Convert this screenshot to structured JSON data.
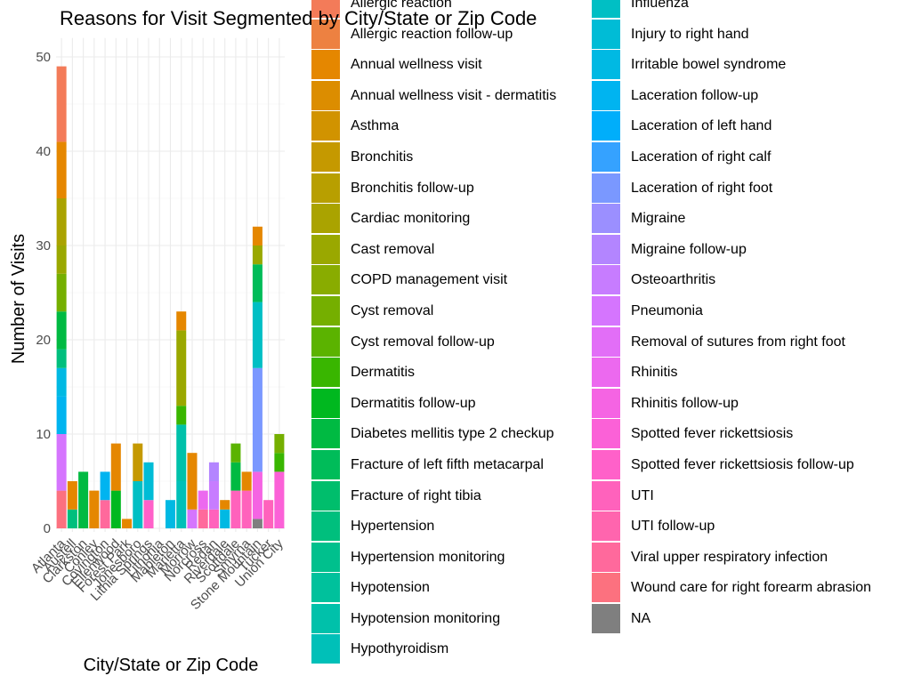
{
  "chart_data": {
    "type": "bar",
    "stacked": true,
    "title": "Reasons for Visit Segmented by City/State or Zip Code",
    "xlabel": "City/State or Zip Code",
    "ylabel": "Number of Visits",
    "ylim": [
      0,
      52
    ],
    "yticks": [
      0,
      10,
      20,
      30,
      40,
      50
    ],
    "grid": true,
    "legend_position": "right",
    "categories": [
      "Atlanta",
      "Austell",
      "Clarkston",
      "Conley",
      "Covington",
      "Ellenwood",
      "Forest Park",
      "Jonesboro",
      "Lithia Springs",
      "Lithonia",
      "Mableton",
      "Marietta",
      "Morrow",
      "Norcross",
      "Redan",
      "Riverdale",
      "Scottdale",
      "Smyrna",
      "Stone Mountain",
      "Tucker",
      "Union City"
    ],
    "series": [
      {
        "name": "Allergic reaction",
        "color": "#F37B59",
        "values": [
          8,
          0,
          0,
          0,
          0,
          0,
          0,
          0,
          0,
          0,
          0,
          0,
          0,
          0,
          0,
          0,
          0,
          0,
          0,
          0,
          0
        ]
      },
      {
        "name": "Allergic reaction follow-up",
        "color": "#ED8141",
        "values": [
          0,
          0,
          0,
          0,
          0,
          0,
          0,
          0,
          0,
          0,
          0,
          0,
          0,
          0,
          0,
          0,
          0,
          0,
          0,
          0,
          0
        ]
      },
      {
        "name": "Annual wellness visit",
        "color": "#E58700",
        "values": [
          6,
          3,
          0,
          4,
          0,
          5,
          1,
          0,
          0,
          0,
          0,
          2,
          6,
          0,
          0,
          1,
          0,
          2,
          2,
          0,
          0
        ]
      },
      {
        "name": "Annual wellness visit - dermatitis",
        "color": "#DC8D00",
        "values": [
          0,
          0,
          0,
          0,
          0,
          0,
          0,
          0,
          0,
          0,
          0,
          0,
          0,
          0,
          0,
          0,
          0,
          0,
          0,
          0,
          0
        ]
      },
      {
        "name": "Asthma",
        "color": "#D19300",
        "values": [
          0,
          0,
          0,
          0,
          0,
          0,
          0,
          0,
          0,
          0,
          0,
          0,
          0,
          0,
          0,
          0,
          0,
          0,
          0,
          0,
          0
        ]
      },
      {
        "name": "Bronchitis",
        "color": "#C59900",
        "values": [
          0,
          0,
          0,
          0,
          0,
          0,
          0,
          4,
          0,
          0,
          0,
          0,
          0,
          0,
          0,
          0,
          0,
          0,
          0,
          0,
          0
        ]
      },
      {
        "name": "Bronchitis follow-up",
        "color": "#B89F00",
        "values": [
          0,
          0,
          0,
          0,
          0,
          0,
          0,
          0,
          0,
          0,
          0,
          0,
          0,
          0,
          0,
          0,
          0,
          0,
          0,
          0,
          0
        ]
      },
      {
        "name": "Cardiac monitoring",
        "color": "#AAA300",
        "values": [
          5,
          0,
          0,
          0,
          0,
          0,
          0,
          0,
          0,
          0,
          0,
          0,
          0,
          0,
          0,
          0,
          0,
          0,
          0,
          0,
          0
        ]
      },
      {
        "name": "Cast removal",
        "color": "#9AA800",
        "values": [
          3,
          0,
          0,
          0,
          0,
          0,
          0,
          0,
          0,
          0,
          0,
          8,
          0,
          0,
          0,
          0,
          0,
          0,
          2,
          0,
          0
        ]
      },
      {
        "name": "COPD management visit",
        "color": "#89AC00",
        "values": [
          0,
          0,
          0,
          0,
          0,
          0,
          0,
          0,
          0,
          0,
          0,
          0,
          0,
          0,
          0,
          0,
          0,
          0,
          0,
          0,
          0
        ]
      },
      {
        "name": "Cyst removal",
        "color": "#75AF00",
        "values": [
          4,
          0,
          0,
          0,
          0,
          0,
          0,
          0,
          0,
          0,
          0,
          0,
          0,
          0,
          0,
          0,
          0,
          0,
          0,
          0,
          2
        ]
      },
      {
        "name": "Cyst removal follow-up",
        "color": "#5BB300",
        "values": [
          0,
          0,
          0,
          0,
          0,
          0,
          0,
          0,
          0,
          0,
          0,
          0,
          0,
          0,
          0,
          0,
          2,
          0,
          0,
          0,
          0
        ]
      },
      {
        "name": "Dermatitis",
        "color": "#39B600",
        "values": [
          0,
          0,
          0,
          0,
          0,
          0,
          0,
          0,
          0,
          0,
          0,
          2,
          0,
          0,
          0,
          0,
          0,
          0,
          0,
          0,
          2
        ]
      },
      {
        "name": "Dermatitis follow-up",
        "color": "#00B81F",
        "values": [
          0,
          0,
          0,
          0,
          0,
          4,
          0,
          0,
          0,
          0,
          0,
          0,
          0,
          0,
          0,
          0,
          0,
          0,
          0,
          0,
          0
        ]
      },
      {
        "name": "Diabetes mellitis type 2 checkup",
        "color": "#00BA42",
        "values": [
          4,
          0,
          6,
          0,
          0,
          0,
          0,
          0,
          0,
          0,
          0,
          0,
          0,
          0,
          0,
          0,
          3,
          0,
          0,
          0,
          0
        ]
      },
      {
        "name": "Fracture of left fifth metacarpal",
        "color": "#00BC59",
        "values": [
          0,
          0,
          0,
          0,
          0,
          0,
          0,
          0,
          0,
          0,
          0,
          0,
          0,
          0,
          0,
          0,
          0,
          0,
          4,
          0,
          0
        ]
      },
      {
        "name": "Fracture of right tibia",
        "color": "#00BE6C",
        "values": [
          0,
          0,
          0,
          0,
          0,
          0,
          0,
          0,
          0,
          0,
          0,
          0,
          0,
          0,
          0,
          0,
          0,
          0,
          0,
          0,
          0
        ]
      },
      {
        "name": "Hypertension",
        "color": "#00BF7D",
        "values": [
          2,
          2,
          0,
          0,
          0,
          0,
          0,
          0,
          0,
          0,
          0,
          0,
          0,
          0,
          0,
          0,
          0,
          0,
          0,
          0,
          0
        ]
      },
      {
        "name": "Hypertension monitoring",
        "color": "#00C08D",
        "values": [
          0,
          0,
          0,
          0,
          0,
          0,
          0,
          0,
          0,
          0,
          0,
          0,
          0,
          0,
          0,
          0,
          0,
          0,
          0,
          0,
          0
        ]
      },
      {
        "name": "Hypotension",
        "color": "#00C19C",
        "values": [
          0,
          0,
          0,
          0,
          0,
          0,
          0,
          0,
          0,
          0,
          0,
          0,
          0,
          0,
          0,
          0,
          0,
          0,
          0,
          0,
          0
        ]
      },
      {
        "name": "Hypotension monitoring",
        "color": "#00C1AA",
        "values": [
          0,
          0,
          0,
          0,
          0,
          0,
          0,
          0,
          0,
          0,
          0,
          6,
          0,
          0,
          0,
          0,
          0,
          0,
          0,
          0,
          0
        ]
      },
      {
        "name": "Hypothyroidism",
        "color": "#00C0B8",
        "values": [
          0,
          0,
          0,
          0,
          0,
          0,
          0,
          0,
          0,
          0,
          0,
          5,
          0,
          0,
          0,
          0,
          0,
          0,
          0,
          0,
          0
        ]
      },
      {
        "name": "Influenza",
        "color": "#00BFC4",
        "values": [
          0,
          0,
          0,
          0,
          0,
          0,
          0,
          5,
          0,
          0,
          0,
          0,
          0,
          0,
          0,
          0,
          0,
          0,
          7,
          0,
          0
        ]
      },
      {
        "name": "Injury to right hand",
        "color": "#00BCD6",
        "values": [
          0,
          0,
          0,
          0,
          0,
          0,
          0,
          0,
          4,
          0,
          0,
          0,
          0,
          0,
          0,
          0,
          0,
          0,
          0,
          0,
          0
        ]
      },
      {
        "name": "Irritable bowel syndrome",
        "color": "#00B9E3",
        "values": [
          3,
          0,
          0,
          0,
          0,
          0,
          0,
          0,
          0,
          0,
          3,
          0,
          0,
          0,
          0,
          2,
          0,
          0,
          0,
          0,
          0
        ]
      },
      {
        "name": "Laceration follow-up",
        "color": "#00B4F0",
        "values": [
          4,
          0,
          0,
          0,
          3,
          0,
          0,
          0,
          0,
          0,
          0,
          0,
          0,
          0,
          0,
          0,
          0,
          0,
          0,
          0,
          0
        ]
      },
      {
        "name": "Laceration of left hand",
        "color": "#00AEFA",
        "values": [
          0,
          0,
          0,
          0,
          0,
          0,
          0,
          0,
          0,
          0,
          0,
          0,
          0,
          0,
          0,
          0,
          0,
          0,
          0,
          0,
          0
        ]
      },
      {
        "name": "Laceration of right calf",
        "color": "#35A2FF",
        "values": [
          0,
          0,
          0,
          0,
          0,
          0,
          0,
          0,
          0,
          0,
          0,
          0,
          0,
          0,
          0,
          0,
          0,
          0,
          0,
          0,
          0
        ]
      },
      {
        "name": "Laceration of right foot",
        "color": "#7A98FF",
        "values": [
          0,
          0,
          0,
          0,
          0,
          0,
          0,
          0,
          0,
          0,
          0,
          0,
          0,
          0,
          0,
          0,
          0,
          0,
          11,
          0,
          0
        ]
      },
      {
        "name": "Migraine",
        "color": "#9B8FFF",
        "values": [
          0,
          0,
          0,
          0,
          0,
          0,
          0,
          0,
          0,
          0,
          0,
          0,
          0,
          0,
          0,
          0,
          0,
          0,
          0,
          0,
          0
        ]
      },
      {
        "name": "Migraine follow-up",
        "color": "#B385FF",
        "values": [
          0,
          0,
          0,
          0,
          0,
          0,
          0,
          0,
          0,
          0,
          0,
          0,
          0,
          0,
          2,
          0,
          0,
          0,
          0,
          0,
          0
        ]
      },
      {
        "name": "Osteoarthritis",
        "color": "#C77CFF",
        "values": [
          0,
          0,
          0,
          0,
          0,
          0,
          0,
          0,
          0,
          0,
          0,
          0,
          0,
          0,
          3,
          0,
          0,
          0,
          0,
          0,
          0
        ]
      },
      {
        "name": "Pneumonia",
        "color": "#D575FE",
        "values": [
          6,
          0,
          0,
          0,
          0,
          0,
          0,
          0,
          0,
          0,
          0,
          0,
          2,
          0,
          0,
          0,
          0,
          0,
          0,
          0,
          0
        ]
      },
      {
        "name": "Removal of sutures from right foot",
        "color": "#E26EF7",
        "values": [
          0,
          0,
          0,
          0,
          0,
          0,
          0,
          0,
          0,
          0,
          0,
          0,
          0,
          0,
          0,
          0,
          0,
          0,
          0,
          0,
          0
        ]
      },
      {
        "name": "Rhinitis",
        "color": "#EC69EF",
        "values": [
          0,
          0,
          0,
          0,
          0,
          0,
          0,
          0,
          0,
          0,
          0,
          0,
          0,
          2,
          0,
          0,
          0,
          0,
          0,
          0,
          0
        ]
      },
      {
        "name": "Rhinitis follow-up",
        "color": "#F564E3",
        "values": [
          0,
          0,
          0,
          0,
          0,
          0,
          0,
          0,
          0,
          0,
          0,
          0,
          0,
          0,
          0,
          0,
          0,
          0,
          5,
          0,
          0
        ]
      },
      {
        "name": "Spotted fever rickettsiosis",
        "color": "#FB61D7",
        "values": [
          0,
          0,
          0,
          0,
          0,
          0,
          0,
          0,
          0,
          0,
          0,
          0,
          0,
          0,
          0,
          0,
          0,
          0,
          0,
          0,
          6
        ]
      },
      {
        "name": "Spotted fever rickettsiosis follow-up",
        "color": "#FF61C9",
        "values": [
          0,
          0,
          0,
          0,
          0,
          0,
          0,
          0,
          3,
          0,
          0,
          0,
          0,
          0,
          0,
          0,
          0,
          0,
          0,
          0,
          0
        ]
      },
      {
        "name": "UTI",
        "color": "#FF62BC",
        "values": [
          0,
          0,
          0,
          0,
          0,
          0,
          0,
          0,
          0,
          0,
          0,
          0,
          0,
          0,
          2,
          0,
          4,
          4,
          0,
          3,
          0
        ]
      },
      {
        "name": "UTI follow-up",
        "color": "#FF65AE",
        "values": [
          0,
          0,
          0,
          0,
          0,
          0,
          0,
          0,
          0,
          0,
          0,
          0,
          0,
          0,
          0,
          0,
          0,
          0,
          0,
          0,
          0
        ]
      },
      {
        "name": "Viral upper respiratory infection",
        "color": "#FF699C",
        "values": [
          0,
          0,
          0,
          0,
          3,
          0,
          0,
          0,
          0,
          0,
          0,
          0,
          0,
          2,
          0,
          0,
          0,
          0,
          0,
          0,
          0
        ]
      },
      {
        "name": "Wound care for right forearm abrasion",
        "color": "#FC717F",
        "values": [
          4,
          0,
          0,
          0,
          0,
          0,
          0,
          0,
          0,
          0,
          0,
          0,
          0,
          0,
          0,
          0,
          0,
          0,
          0,
          0,
          0
        ]
      },
      {
        "name": "NA",
        "color": "#7F7F7F",
        "values": [
          0,
          0,
          0,
          0,
          0,
          0,
          0,
          0,
          0,
          0,
          0,
          0,
          0,
          0,
          0,
          0,
          0,
          0,
          1,
          0,
          0
        ]
      }
    ]
  }
}
